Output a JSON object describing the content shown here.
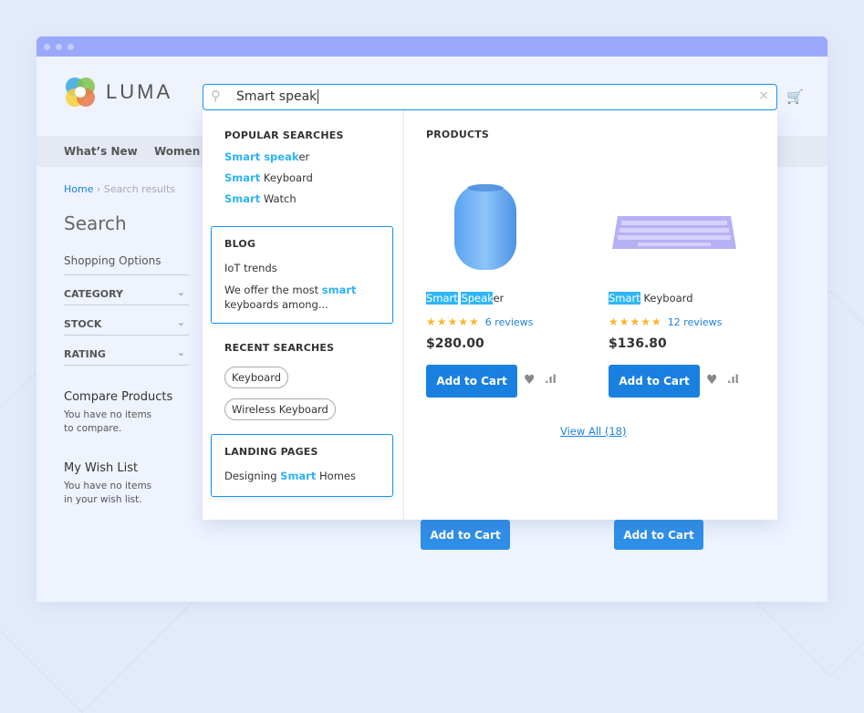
{
  "logo": {
    "text": "LUMA"
  },
  "search": {
    "value": "Smart speak"
  },
  "nav": [
    "What’s New",
    "Women"
  ],
  "breadcrumb": {
    "home": "Home",
    "current": "Search results"
  },
  "sidebar": {
    "title": "Search",
    "shopping_options": "Shopping Options",
    "filters": [
      "CATEGORY",
      "STOCK",
      "RATING"
    ],
    "compare": {
      "title": "Compare Products",
      "text1": "You have no items",
      "text2": "to compare."
    },
    "wishlist": {
      "title": "My Wish List",
      "text1": "You have no items",
      "text2": "in your wish list."
    }
  },
  "dropdown": {
    "popular": {
      "title": "POPULAR SEARCHES",
      "items": [
        {
          "hl": "Smart speak",
          "rest": "er"
        },
        {
          "hl": "Smart",
          "rest": " Keyboard"
        },
        {
          "hl": "Smart",
          "rest": " Watch"
        }
      ]
    },
    "blog": {
      "title": "BLOG",
      "item1": "IoT trends",
      "item2_pre": "We offer the most ",
      "item2_hl": "smart",
      "item2_post": " keyboards among..."
    },
    "recent": {
      "title": "RECENT SEARCHES",
      "items": [
        "Keyboard",
        "Wireless Keyboard"
      ]
    },
    "landing": {
      "title": "LANDING PAGES",
      "pre": "Designing ",
      "hl": "Smart",
      "post": " Homes"
    },
    "products": {
      "title": "PRODUCTS",
      "view_all": "View All (18)",
      "items": [
        {
          "name_hl1": "Smart",
          "name_hl2": "Speak",
          "name_rest": "er",
          "stars": "★★★★★",
          "rating": 5,
          "reviews": "6 reviews",
          "price": "$280.00",
          "cta": "Add to Cart"
        },
        {
          "name_hl1": "Smart",
          "name_hl2": "",
          "name_rest": " Keyboard",
          "stars": "★★★★★",
          "rating": 5,
          "reviews": "12 reviews",
          "price": "$136.80",
          "cta": "Add to Cart"
        }
      ]
    }
  },
  "bottom_buttons": [
    "Add to Cart",
    "Add to Cart"
  ],
  "colors": {
    "accent": "#1a80e0",
    "highlight": "#2fb6f5",
    "titlebar": "#9aa8fc"
  }
}
